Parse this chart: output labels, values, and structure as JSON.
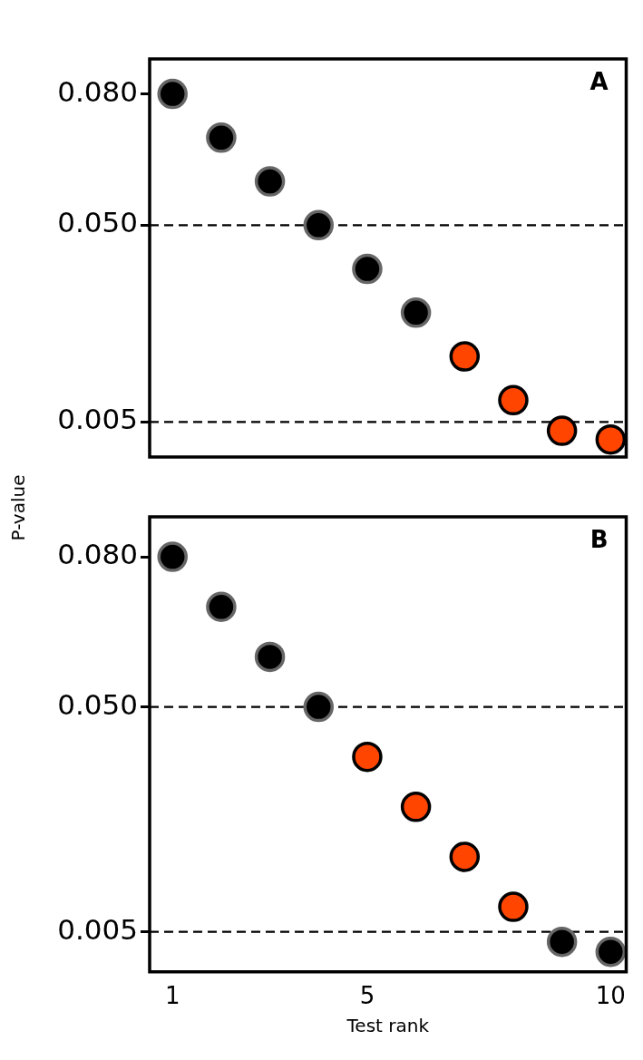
{
  "chart_data": [
    {
      "type": "scatter",
      "ylabel": "P-value",
      "annotations": [
        "A"
      ],
      "xlim": [
        0.53,
        10.32
      ],
      "xticks": [
        1,
        5,
        10
      ],
      "ylim": [
        -0.003,
        0.088
      ],
      "yticks": [
        {
          "value": 0.005,
          "label": "0.005"
        },
        {
          "value": 0.05,
          "label": "0.050"
        },
        {
          "value": 0.08,
          "label": "0.080"
        }
      ],
      "tick_labels": "y",
      "grid": false,
      "legend": false,
      "marker": "circle",
      "ref_lines": [
        {
          "axis": "y",
          "value": 0.05,
          "color": "#000000",
          "line_style": "dashed"
        },
        {
          "axis": "y",
          "value": 0.005,
          "color": "#000000",
          "line_style": "dashed"
        }
      ],
      "series": [
        {
          "color": "#000000",
          "x": [
            1,
            2,
            3,
            4,
            5,
            6
          ],
          "values": [
            0.08,
            0.07,
            0.06,
            0.05,
            0.04,
            0.03
          ]
        },
        {
          "color": "#ff4500",
          "x": [
            7,
            8,
            9,
            10
          ],
          "values": [
            0.02,
            0.01,
            0.003,
            0.001
          ]
        }
      ]
    },
    {
      "type": "scatter",
      "xlabel": "Test rank",
      "annotations": [
        "B"
      ],
      "xlim": [
        0.53,
        10.32
      ],
      "xticks": [
        1,
        5,
        10
      ],
      "ylim": [
        -0.003,
        0.088
      ],
      "yticks": [
        {
          "value": 0.005,
          "label": "0.005"
        },
        {
          "value": 0.05,
          "label": "0.050"
        },
        {
          "value": 0.08,
          "label": "0.080"
        }
      ],
      "grid": false,
      "legend": false,
      "marker": "circle",
      "ref_lines": [
        {
          "axis": "y",
          "value": 0.05,
          "color": "#000000",
          "line_style": "dashed"
        },
        {
          "axis": "y",
          "value": 0.005,
          "color": "#000000",
          "line_style": "dashed"
        }
      ],
      "series": [
        {
          "color": "#000000",
          "x": [
            1,
            2,
            3,
            4,
            9,
            10
          ],
          "values": [
            0.08,
            0.07,
            0.06,
            0.05,
            0.003,
            0.001
          ]
        },
        {
          "color": "#ff4500",
          "x": [
            5,
            6,
            7,
            8
          ],
          "values": [
            0.04,
            0.03,
            0.02,
            0.01
          ]
        }
      ]
    }
  ]
}
